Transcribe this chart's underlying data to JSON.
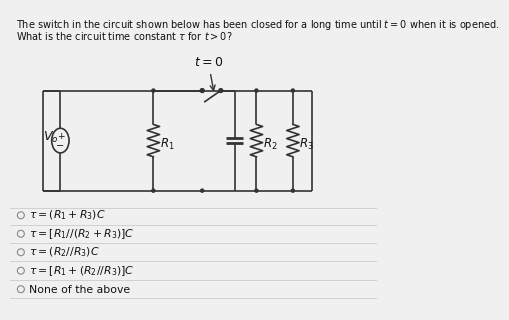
{
  "title_line1": "The switch in the circuit shown below has been closed for a long time until $t = 0$ when it is opened.",
  "title_line2": "What is the circuit time constant $\\tau$ for $t > 0$?",
  "switch_label": "$t = 0$",
  "bg_color": "#f0f0f0",
  "text_color": "#111111",
  "line_color": "#333333",
  "options": [
    "$\\tau = (R_1 + R_3)C$",
    "$\\tau = [R_1//(R_2 + R_3)]C$",
    "$\\tau = (R_2//R_3)C$",
    "$\\tau = [R_1 + (R_2//R_3)]C$",
    "None of the above"
  ]
}
